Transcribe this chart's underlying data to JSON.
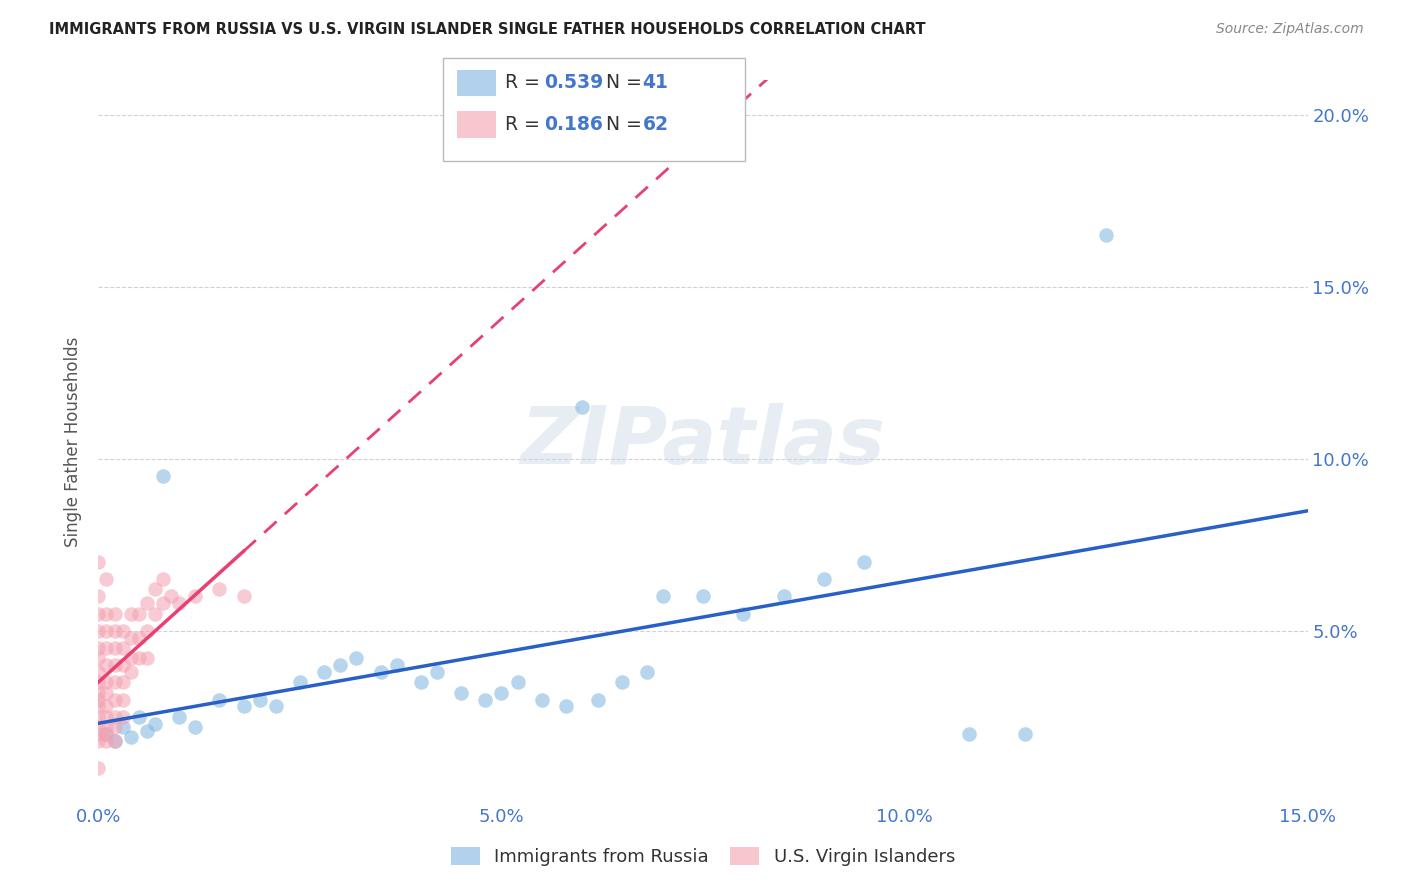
{
  "title": "IMMIGRANTS FROM RUSSIA VS U.S. VIRGIN ISLANDER SINGLE FATHER HOUSEHOLDS CORRELATION CHART",
  "source": "Source: ZipAtlas.com",
  "ylabel": "Single Father Households",
  "xlim": [
    0.0,
    0.15
  ],
  "ylim": [
    0.0,
    0.21
  ],
  "xticks": [
    0.0,
    0.05,
    0.1,
    0.15
  ],
  "yticks": [
    0.05,
    0.1,
    0.15,
    0.2
  ],
  "xtick_labels": [
    "0.0%",
    "5.0%",
    "10.0%",
    "15.0%"
  ],
  "ytick_labels": [
    "5.0%",
    "10.0%",
    "15.0%",
    "20.0%"
  ],
  "blue_color": "#7fb3e0",
  "pink_color": "#f4a0b0",
  "blue_line_color": "#2860c8",
  "pink_line_color": "#e84070",
  "legend_R_blue": "0.539",
  "legend_N_blue": "41",
  "legend_R_pink": "0.186",
  "legend_N_pink": "62",
  "watermark": "ZIPatlas",
  "blue_scatter": [
    [
      0.001,
      0.02
    ],
    [
      0.002,
      0.018
    ],
    [
      0.003,
      0.022
    ],
    [
      0.004,
      0.019
    ],
    [
      0.005,
      0.025
    ],
    [
      0.006,
      0.021
    ],
    [
      0.007,
      0.023
    ],
    [
      0.008,
      0.095
    ],
    [
      0.01,
      0.025
    ],
    [
      0.012,
      0.022
    ],
    [
      0.015,
      0.03
    ],
    [
      0.018,
      0.028
    ],
    [
      0.02,
      0.03
    ],
    [
      0.022,
      0.028
    ],
    [
      0.025,
      0.035
    ],
    [
      0.028,
      0.038
    ],
    [
      0.03,
      0.04
    ],
    [
      0.032,
      0.042
    ],
    [
      0.035,
      0.038
    ],
    [
      0.037,
      0.04
    ],
    [
      0.04,
      0.035
    ],
    [
      0.042,
      0.038
    ],
    [
      0.045,
      0.032
    ],
    [
      0.048,
      0.03
    ],
    [
      0.05,
      0.032
    ],
    [
      0.052,
      0.035
    ],
    [
      0.055,
      0.03
    ],
    [
      0.058,
      0.028
    ],
    [
      0.06,
      0.115
    ],
    [
      0.062,
      0.03
    ],
    [
      0.065,
      0.035
    ],
    [
      0.068,
      0.038
    ],
    [
      0.07,
      0.06
    ],
    [
      0.075,
      0.06
    ],
    [
      0.08,
      0.055
    ],
    [
      0.085,
      0.06
    ],
    [
      0.09,
      0.065
    ],
    [
      0.095,
      0.07
    ],
    [
      0.108,
      0.02
    ],
    [
      0.115,
      0.02
    ],
    [
      0.125,
      0.165
    ]
  ],
  "pink_scatter": [
    [
      0.0,
      0.07
    ],
    [
      0.0,
      0.06
    ],
    [
      0.0,
      0.055
    ],
    [
      0.0,
      0.05
    ],
    [
      0.0,
      0.045
    ],
    [
      0.0,
      0.042
    ],
    [
      0.0,
      0.038
    ],
    [
      0.0,
      0.035
    ],
    [
      0.0,
      0.032
    ],
    [
      0.0,
      0.03
    ],
    [
      0.0,
      0.028
    ],
    [
      0.0,
      0.025
    ],
    [
      0.0,
      0.022
    ],
    [
      0.0,
      0.02
    ],
    [
      0.0,
      0.018
    ],
    [
      0.001,
      0.065
    ],
    [
      0.001,
      0.055
    ],
    [
      0.001,
      0.05
    ],
    [
      0.001,
      0.045
    ],
    [
      0.001,
      0.04
    ],
    [
      0.001,
      0.035
    ],
    [
      0.001,
      0.032
    ],
    [
      0.001,
      0.028
    ],
    [
      0.001,
      0.025
    ],
    [
      0.001,
      0.022
    ],
    [
      0.001,
      0.02
    ],
    [
      0.001,
      0.018
    ],
    [
      0.002,
      0.055
    ],
    [
      0.002,
      0.05
    ],
    [
      0.002,
      0.045
    ],
    [
      0.002,
      0.04
    ],
    [
      0.002,
      0.035
    ],
    [
      0.002,
      0.03
    ],
    [
      0.002,
      0.025
    ],
    [
      0.002,
      0.022
    ],
    [
      0.002,
      0.018
    ],
    [
      0.003,
      0.05
    ],
    [
      0.003,
      0.045
    ],
    [
      0.003,
      0.04
    ],
    [
      0.003,
      0.035
    ],
    [
      0.003,
      0.03
    ],
    [
      0.003,
      0.025
    ],
    [
      0.004,
      0.055
    ],
    [
      0.004,
      0.048
    ],
    [
      0.004,
      0.042
    ],
    [
      0.004,
      0.038
    ],
    [
      0.005,
      0.055
    ],
    [
      0.005,
      0.048
    ],
    [
      0.005,
      0.042
    ],
    [
      0.006,
      0.058
    ],
    [
      0.006,
      0.05
    ],
    [
      0.006,
      0.042
    ],
    [
      0.007,
      0.062
    ],
    [
      0.007,
      0.055
    ],
    [
      0.008,
      0.065
    ],
    [
      0.008,
      0.058
    ],
    [
      0.009,
      0.06
    ],
    [
      0.01,
      0.058
    ],
    [
      0.012,
      0.06
    ],
    [
      0.015,
      0.062
    ],
    [
      0.018,
      0.06
    ],
    [
      0.0,
      0.01
    ]
  ],
  "background_color": "#ffffff",
  "grid_color": "#cccccc",
  "tick_color": "#4477cc",
  "label_color": "#555555"
}
